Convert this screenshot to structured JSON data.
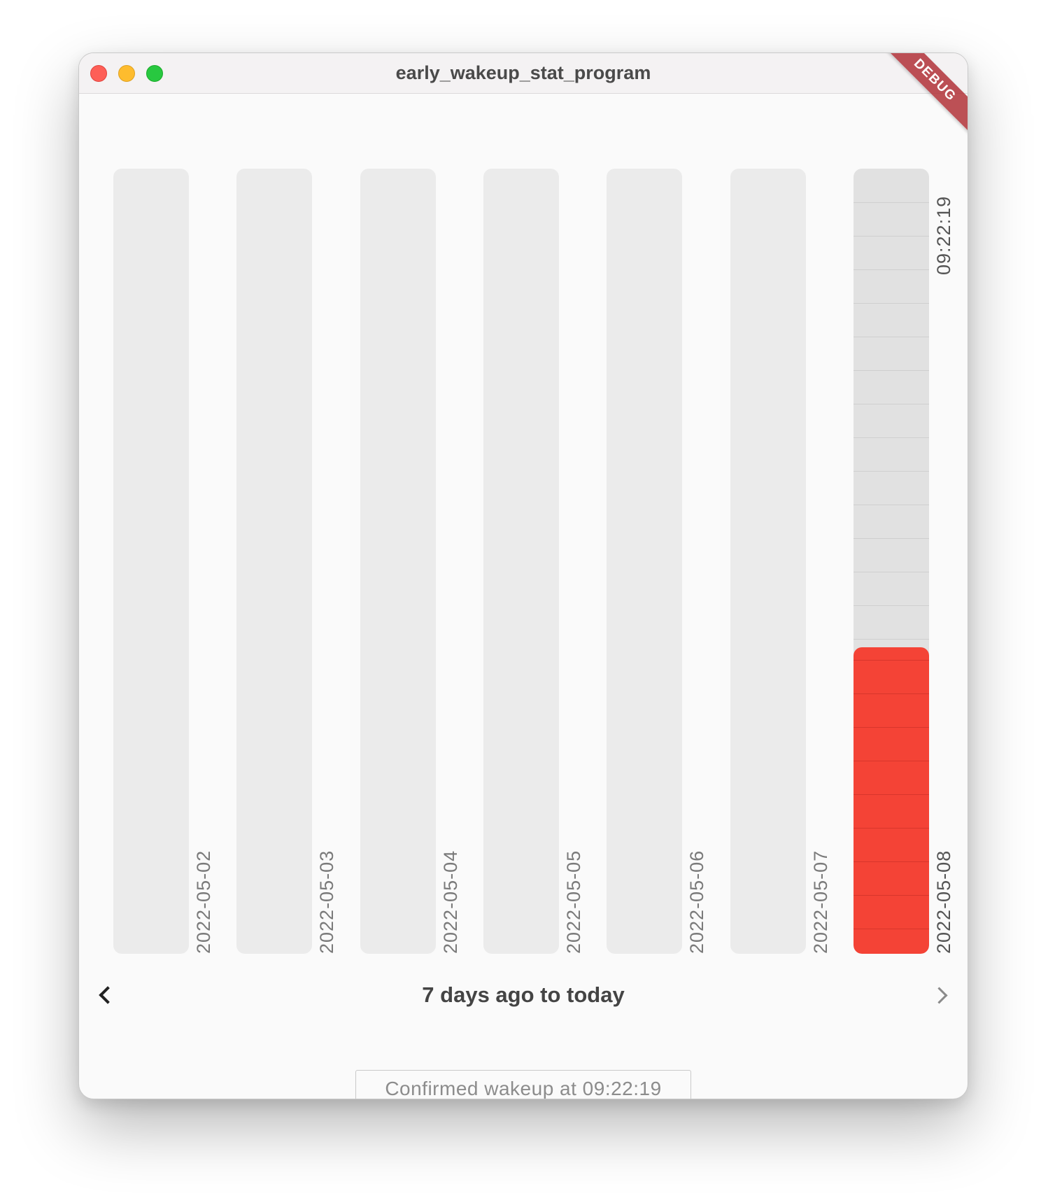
{
  "window": {
    "title": "early_wakeup_stat_program"
  },
  "chart_data": {
    "type": "bar",
    "categories": [
      "2022-05-02",
      "2022-05-03",
      "2022-05-04",
      "2022-05-05",
      "2022-05-06",
      "2022-05-07",
      "2022-05-08"
    ],
    "series": [
      {
        "values": [
          0,
          0,
          0,
          0,
          0,
          0,
          0.39
        ]
      }
    ],
    "ylim": [
      0,
      1
    ],
    "value_label": "09:22:19",
    "highlight_index": 6,
    "colors": {
      "fill": "#f44336",
      "track": "#ebebeb"
    }
  },
  "navigation": {
    "range_label": "7 days ago to today",
    "prev_icon": "chevron-left-icon",
    "next_icon": "chevron-right-icon"
  },
  "confirm": {
    "label": "Confirmed wakeup at 09:22:19"
  },
  "debug_banner": {
    "label": "DEBUG"
  }
}
